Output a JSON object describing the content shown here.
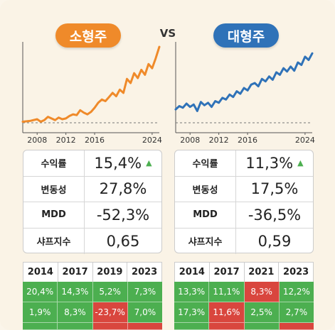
{
  "header": {
    "left_title": "소형주",
    "vs": "VS",
    "right_title": "대형주"
  },
  "colors": {
    "small_cap": "#ef8a2a",
    "large_cap": "#2f72b8",
    "positive": "#4caf50",
    "negative": "#d9463e"
  },
  "chart_data": [
    {
      "type": "line",
      "title": "소형주",
      "x_ticks": [
        "2008",
        "2012",
        "2016",
        "2024"
      ],
      "xlim": [
        2006,
        2025
      ],
      "ylim": [
        0,
        100
      ],
      "grid": false,
      "baseline_dashed": true,
      "series": [
        {
          "color": "#ef8a2a",
          "x": [
            2006,
            2007,
            2008,
            2008.5,
            2009,
            2009.5,
            2010,
            2010.5,
            2011,
            2011.5,
            2012,
            2012.5,
            2013,
            2013.5,
            2014,
            2014.5,
            2015,
            2015.5,
            2016,
            2016.5,
            2017,
            2017.5,
            2018,
            2018.5,
            2019,
            2019.5,
            2020,
            2020.5,
            2021,
            2021.5,
            2022,
            2022.5,
            2023,
            2023.5,
            2024,
            2024.5,
            2025
          ],
          "y": [
            3,
            4,
            6,
            3,
            5,
            9,
            7,
            5,
            8,
            6,
            7,
            10,
            12,
            11,
            17,
            14,
            12,
            15,
            20,
            26,
            30,
            28,
            33,
            38,
            34,
            42,
            38,
            55,
            50,
            62,
            56,
            66,
            60,
            73,
            68,
            80,
            94
          ]
        }
      ]
    },
    {
      "type": "line",
      "title": "대형주",
      "x_ticks": [
        "2008",
        "2012",
        "2016",
        "2024"
      ],
      "xlim": [
        2006,
        2025
      ],
      "ylim": [
        0,
        100
      ],
      "grid": false,
      "baseline_dashed": true,
      "series": [
        {
          "color": "#2f72b8",
          "x": [
            2006,
            2006.5,
            2007,
            2007.5,
            2008,
            2008.5,
            2009,
            2009.5,
            2010,
            2010.5,
            2011,
            2011.5,
            2012,
            2012.5,
            2013,
            2013.5,
            2014,
            2014.5,
            2015,
            2015.5,
            2016,
            2016.5,
            2017,
            2017.5,
            2018,
            2018.5,
            2019,
            2019.5,
            2020,
            2020.5,
            2021,
            2021.5,
            2022,
            2022.5,
            2023,
            2023.5,
            2024,
            2024.5,
            2025
          ],
          "y": [
            18,
            22,
            20,
            25,
            21,
            24,
            16,
            27,
            23,
            26,
            21,
            28,
            26,
            32,
            30,
            36,
            33,
            40,
            37,
            44,
            41,
            48,
            50,
            46,
            55,
            52,
            58,
            54,
            63,
            60,
            68,
            64,
            70,
            65,
            75,
            72,
            82,
            78,
            86
          ]
        }
      ]
    }
  ],
  "stats": {
    "left": [
      {
        "label": "수익률",
        "value": "15,4%",
        "arrow": "▲"
      },
      {
        "label": "변동성",
        "value": "27,8%",
        "arrow": ""
      },
      {
        "label": "MDD",
        "value": "-52,3%",
        "arrow": ""
      },
      {
        "label": "샤프지수",
        "value": "0,65",
        "arrow": ""
      }
    ],
    "right": [
      {
        "label": "수익률",
        "value": "11,3%",
        "arrow": "▲"
      },
      {
        "label": "변동성",
        "value": "17,5%",
        "arrow": ""
      },
      {
        "label": "MDD",
        "value": "-36,5%",
        "arrow": ""
      },
      {
        "label": "샤프지수",
        "value": "0,59",
        "arrow": ""
      }
    ]
  },
  "yearly": {
    "left": {
      "headers": [
        "2014",
        "2017",
        "2019",
        "2023"
      ],
      "rows": [
        [
          {
            "v": "20,4%",
            "s": "pos"
          },
          {
            "v": "14,3%",
            "s": "pos"
          },
          {
            "v": "5,2%",
            "s": "pos"
          },
          {
            "v": "7,3%",
            "s": "pos"
          }
        ],
        [
          {
            "v": "1,9%",
            "s": "pos"
          },
          {
            "v": "8,3%",
            "s": "pos"
          },
          {
            "v": "-23,7%",
            "s": "neg"
          },
          {
            "v": "7,0%",
            "s": "pos"
          }
        ],
        [
          {
            "v": "",
            "s": "pos"
          },
          {
            "v": "",
            "s": "pos"
          },
          {
            "v": "",
            "s": "neg"
          },
          {
            "v": "",
            "s": "neg"
          }
        ]
      ]
    },
    "right": {
      "headers": [
        "2014",
        "2017",
        "2021",
        "2023"
      ],
      "rows": [
        [
          {
            "v": "13,3%",
            "s": "pos"
          },
          {
            "v": "11,1%",
            "s": "pos"
          },
          {
            "v": "8,3%",
            "s": "neg"
          },
          {
            "v": "12,2%",
            "s": "pos"
          }
        ],
        [
          {
            "v": "17,3%",
            "s": "pos"
          },
          {
            "v": "11,6%",
            "s": "neg"
          },
          {
            "v": "2,5%",
            "s": "pos"
          },
          {
            "v": "2,7%",
            "s": "pos"
          }
        ],
        [
          {
            "v": "",
            "s": "pos"
          },
          {
            "v": "",
            "s": "neg"
          },
          {
            "v": "",
            "s": "pos"
          },
          {
            "v": "",
            "s": "neg"
          }
        ]
      ]
    }
  }
}
